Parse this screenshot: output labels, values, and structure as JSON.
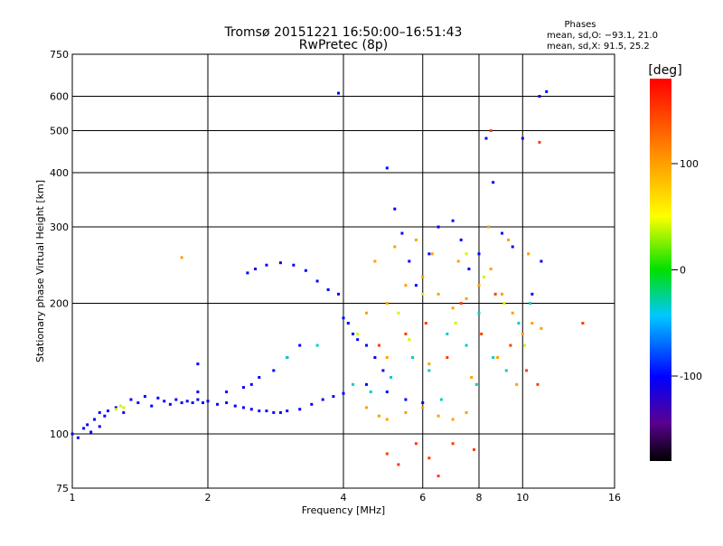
{
  "chart_data": {
    "type": "scatter",
    "title": "Tromsø 20151221 16:50:00–16:51:43",
    "subtitle": "RwPretec (8p)",
    "xlabel": "Frequency [MHz]",
    "ylabel": "Stationary phase Virtual Height [km]",
    "x_scale": "log",
    "y_scale": "log",
    "xlim": [
      1,
      16
    ],
    "ylim": [
      75,
      750
    ],
    "x_ticks": [
      1,
      2,
      4,
      6,
      8,
      10,
      16
    ],
    "y_ticks": [
      75,
      100,
      200,
      300,
      400,
      500,
      600,
      750
    ],
    "grid": true,
    "stats": {
      "heading": "Phases",
      "line_o": "mean, sd,O: −93.1, 21.0",
      "line_x": "mean, sd,X:  91.5, 25.2"
    },
    "colorbar": {
      "label": "[deg]",
      "ticks": [
        100,
        0,
        -100
      ],
      "range": [
        -180,
        180
      ]
    },
    "series": [
      {
        "phase": -100,
        "points": [
          [
            1.0,
            100
          ],
          [
            1.03,
            98
          ],
          [
            1.06,
            103
          ],
          [
            1.08,
            105
          ],
          [
            1.1,
            101
          ],
          [
            1.12,
            108
          ],
          [
            1.15,
            104
          ],
          [
            1.18,
            110
          ],
          [
            1.2,
            113
          ],
          [
            1.25,
            115
          ],
          [
            1.3,
            112
          ],
          [
            1.35,
            120
          ],
          [
            1.4,
            118
          ],
          [
            1.45,
            122
          ],
          [
            1.5,
            116
          ],
          [
            1.55,
            121
          ],
          [
            1.6,
            119
          ],
          [
            1.65,
            117
          ],
          [
            1.7,
            120
          ],
          [
            1.75,
            118
          ],
          [
            1.8,
            119
          ],
          [
            1.85,
            118
          ],
          [
            1.9,
            120
          ],
          [
            1.95,
            118
          ],
          [
            2.0,
            119
          ],
          [
            2.1,
            117
          ],
          [
            2.2,
            118
          ],
          [
            2.3,
            116
          ],
          [
            2.4,
            115
          ],
          [
            2.5,
            114
          ],
          [
            2.6,
            113
          ],
          [
            2.7,
            113
          ],
          [
            2.8,
            112
          ],
          [
            2.9,
            112
          ],
          [
            3.0,
            113
          ],
          [
            3.2,
            114
          ],
          [
            3.4,
            117
          ],
          [
            3.6,
            120
          ],
          [
            3.8,
            122
          ],
          [
            4.0,
            124
          ],
          [
            2.5,
            130
          ],
          [
            2.6,
            135
          ],
          [
            2.8,
            140
          ],
          [
            3.0,
            150
          ],
          [
            3.2,
            160
          ],
          [
            2.2,
            125
          ],
          [
            2.4,
            128
          ],
          [
            1.9,
            125
          ],
          [
            2.45,
            235
          ],
          [
            2.55,
            240
          ],
          [
            2.7,
            245
          ],
          [
            2.9,
            248
          ],
          [
            3.1,
            245
          ],
          [
            3.3,
            238
          ],
          [
            3.5,
            225
          ],
          [
            3.7,
            215
          ],
          [
            3.9,
            210
          ],
          [
            4.0,
            185
          ],
          [
            4.1,
            180
          ],
          [
            4.2,
            170
          ],
          [
            4.3,
            165
          ],
          [
            4.5,
            160
          ],
          [
            4.7,
            150
          ],
          [
            4.9,
            140
          ],
          [
            5.0,
            410
          ],
          [
            5.2,
            330
          ],
          [
            5.4,
            290
          ],
          [
            5.6,
            250
          ],
          [
            5.8,
            220
          ],
          [
            6.2,
            260
          ],
          [
            6.5,
            300
          ],
          [
            7.0,
            310
          ],
          [
            7.3,
            280
          ],
          [
            7.6,
            240
          ],
          [
            8.0,
            260
          ],
          [
            8.3,
            480
          ],
          [
            8.6,
            380
          ],
          [
            9.0,
            290
          ],
          [
            9.5,
            270
          ],
          [
            10.0,
            480
          ],
          [
            10.5,
            210
          ],
          [
            11.0,
            250
          ],
          [
            4.5,
            130
          ],
          [
            5.0,
            125
          ],
          [
            5.5,
            120
          ],
          [
            6.0,
            118
          ],
          [
            1.15,
            112
          ],
          [
            1.9,
            145
          ],
          [
            3.9,
            610
          ],
          [
            10.9,
            600
          ],
          [
            11.3,
            615
          ]
        ]
      },
      {
        "phase": -30,
        "points": [
          [
            3.0,
            150
          ],
          [
            3.5,
            160
          ],
          [
            4.2,
            130
          ],
          [
            4.6,
            125
          ],
          [
            5.1,
            135
          ],
          [
            5.7,
            150
          ],
          [
            6.2,
            140
          ],
          [
            6.8,
            170
          ],
          [
            7.5,
            160
          ],
          [
            8.0,
            190
          ],
          [
            8.6,
            150
          ],
          [
            9.2,
            140
          ],
          [
            9.8,
            180
          ],
          [
            10.4,
            200
          ],
          [
            6.6,
            120
          ],
          [
            7.9,
            130
          ]
        ]
      },
      {
        "phase": 40,
        "points": [
          [
            1.25,
            114
          ],
          [
            1.28,
            116
          ],
          [
            1.3,
            115
          ],
          [
            4.3,
            170
          ],
          [
            5.3,
            190
          ],
          [
            6.0,
            210
          ],
          [
            7.1,
            180
          ],
          [
            8.2,
            230
          ],
          [
            9.1,
            200
          ],
          [
            10.1,
            160
          ],
          [
            5.6,
            165
          ],
          [
            7.5,
            260
          ]
        ]
      },
      {
        "phase": 100,
        "points": [
          [
            4.5,
            115
          ],
          [
            4.8,
            110
          ],
          [
            5.0,
            108
          ],
          [
            5.5,
            112
          ],
          [
            6.0,
            115
          ],
          [
            6.5,
            110
          ],
          [
            7.0,
            108
          ],
          [
            7.5,
            112
          ],
          [
            4.5,
            190
          ],
          [
            5.0,
            200
          ],
          [
            5.5,
            220
          ],
          [
            6.0,
            230
          ],
          [
            6.5,
            210
          ],
          [
            7.0,
            195
          ],
          [
            7.5,
            205
          ],
          [
            8.0,
            220
          ],
          [
            8.5,
            240
          ],
          [
            9.0,
            210
          ],
          [
            9.5,
            190
          ],
          [
            10.0,
            170
          ],
          [
            10.5,
            180
          ],
          [
            11.0,
            175
          ],
          [
            4.7,
            250
          ],
          [
            5.2,
            270
          ],
          [
            5.8,
            280
          ],
          [
            6.3,
            260
          ],
          [
            7.2,
            250
          ],
          [
            8.4,
            300
          ],
          [
            9.3,
            280
          ],
          [
            10.3,
            260
          ],
          [
            1.75,
            255
          ],
          [
            5.0,
            150
          ],
          [
            6.2,
            145
          ],
          [
            7.7,
            135
          ],
          [
            8.8,
            150
          ],
          [
            9.7,
            130
          ]
        ]
      },
      {
        "phase": 150,
        "points": [
          [
            5.0,
            90
          ],
          [
            5.3,
            85
          ],
          [
            5.8,
            95
          ],
          [
            6.2,
            88
          ],
          [
            6.5,
            80
          ],
          [
            7.0,
            95
          ],
          [
            7.8,
            92
          ],
          [
            4.8,
            160
          ],
          [
            5.5,
            170
          ],
          [
            6.1,
            180
          ],
          [
            6.8,
            150
          ],
          [
            7.3,
            200
          ],
          [
            8.1,
            170
          ],
          [
            8.7,
            210
          ],
          [
            9.4,
            160
          ],
          [
            10.2,
            140
          ],
          [
            10.8,
            130
          ],
          [
            13.6,
            180
          ],
          [
            8.5,
            500
          ],
          [
            10.9,
            470
          ]
        ]
      }
    ]
  }
}
